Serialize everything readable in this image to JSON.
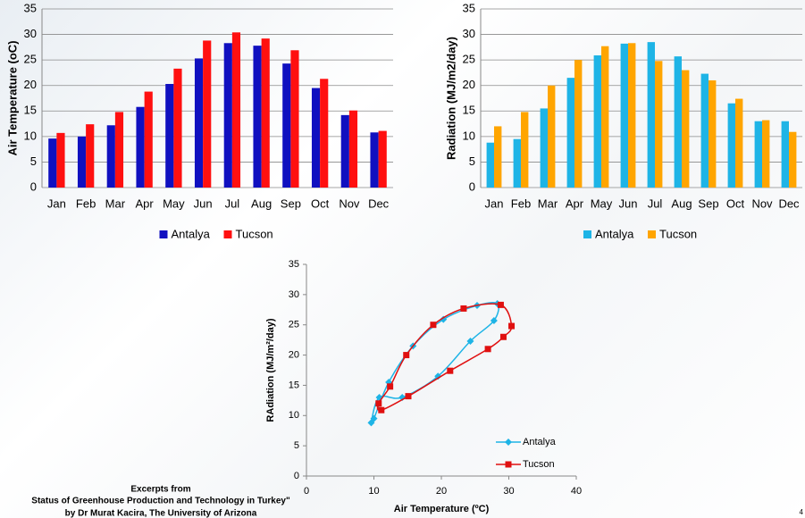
{
  "chart_data": [
    {
      "type": "bar",
      "ylabel": "Air Temperature (oC)",
      "categories": [
        "Jan",
        "Feb",
        "Mar",
        "Apr",
        "May",
        "Jun",
        "Jul",
        "Aug",
        "Sep",
        "Oct",
        "Nov",
        "Dec"
      ],
      "series": [
        {
          "name": "Antalya",
          "color": "#1010c0",
          "values": [
            9.6,
            10,
            12.2,
            15.8,
            20.3,
            25.3,
            28.3,
            27.8,
            24.3,
            19.5,
            14.2,
            10.8
          ]
        },
        {
          "name": "Tucson",
          "color": "#ff1010",
          "values": [
            10.7,
            12.4,
            14.8,
            18.8,
            23.3,
            28.8,
            30.4,
            29.2,
            26.9,
            21.3,
            15.1,
            11.1
          ]
        }
      ],
      "ylim": [
        0,
        35
      ],
      "yticks": [
        0,
        5,
        10,
        15,
        20,
        25,
        30,
        35
      ],
      "grid": true,
      "legend": "bottom"
    },
    {
      "type": "bar",
      "ylabel": "Radiation (MJ/m2/day)",
      "categories": [
        "Jan",
        "Feb",
        "Mar",
        "Apr",
        "May",
        "Jun",
        "Jul",
        "Aug",
        "Sep",
        "Oct",
        "Nov",
        "Dec"
      ],
      "series": [
        {
          "name": "Antalya",
          "color": "#1eb4e6",
          "values": [
            8.8,
            9.5,
            15.5,
            21.5,
            25.9,
            28.2,
            28.5,
            25.7,
            22.3,
            16.5,
            13.0,
            13.0
          ]
        },
        {
          "name": "Tucson",
          "color": "#ffa500",
          "values": [
            12.0,
            14.8,
            20.0,
            25.0,
            27.7,
            28.3,
            24.8,
            23.0,
            21.0,
            17.4,
            13.2,
            10.9
          ]
        }
      ],
      "ylim": [
        0,
        35
      ],
      "yticks": [
        0,
        5,
        10,
        15,
        20,
        25,
        30,
        35
      ],
      "grid": true,
      "legend": "bottom"
    },
    {
      "type": "scatter",
      "xlabel": "Air Temperature (ºC)",
      "ylabel": "RAdiation (MJ/m²/day)",
      "series": [
        {
          "name": "Antalya",
          "color": "#1eb4e6",
          "marker": "diamond",
          "x": [
            9.6,
            10,
            12.2,
            15.8,
            20.3,
            25.3,
            28.3,
            27.8,
            24.3,
            19.5,
            14.2,
            10.8
          ],
          "y": [
            8.8,
            9.5,
            15.5,
            21.5,
            25.9,
            28.2,
            28.5,
            25.7,
            22.3,
            16.5,
            13.0,
            13.0
          ]
        },
        {
          "name": "Tucson",
          "color": "#e01010",
          "marker": "square",
          "x": [
            10.7,
            12.4,
            14.8,
            18.8,
            23.3,
            28.8,
            30.4,
            29.2,
            26.9,
            21.3,
            15.1,
            11.1
          ],
          "y": [
            12.0,
            14.8,
            20.0,
            25.0,
            27.7,
            28.3,
            24.8,
            23.0,
            21.0,
            17.4,
            13.2,
            10.9
          ]
        }
      ],
      "xlim": [
        0,
        40
      ],
      "xticks": [
        0,
        10,
        20,
        30,
        40
      ],
      "ylim": [
        0,
        35
      ],
      "yticks": [
        0,
        5,
        10,
        15,
        20,
        25,
        30,
        35
      ],
      "grid": false,
      "legend": "right"
    }
  ],
  "footer": {
    "lines": [
      "Excerpts  from",
      "Status of Greenhouse Production and Technology in Turkey\"",
      "by Dr Murat Kacira, The University of Arizona"
    ]
  },
  "slide_number": "4"
}
